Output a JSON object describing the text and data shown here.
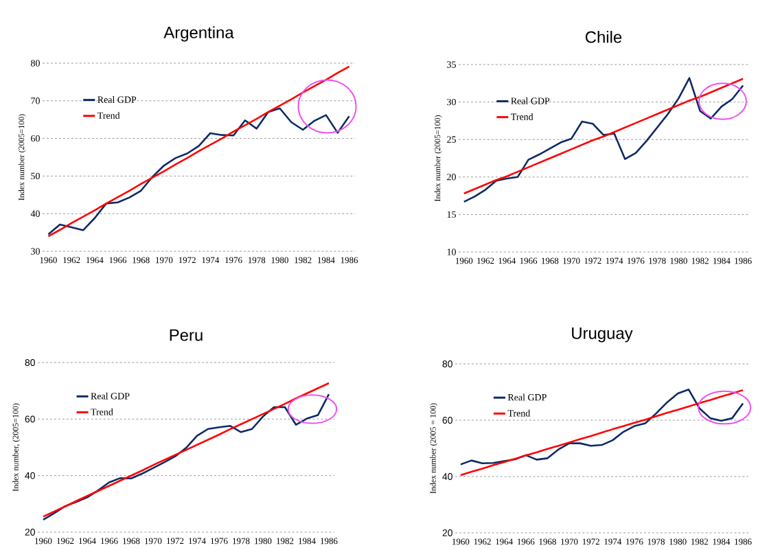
{
  "chart_data": [
    {
      "type": "line",
      "title": "Argentina",
      "ylabel": "Index number (2005=100)",
      "x": [
        1960,
        1961,
        1962,
        1963,
        1964,
        1965,
        1966,
        1967,
        1968,
        1969,
        1970,
        1971,
        1972,
        1973,
        1974,
        1975,
        1976,
        1977,
        1978,
        1979,
        1980,
        1981,
        1982,
        1983,
        1984,
        1985,
        1986
      ],
      "series": [
        {
          "name": "Real GDP",
          "color": "#0d2a63",
          "values": [
            34.5,
            37.1,
            36.4,
            35.6,
            38.8,
            42.7,
            43.0,
            44.3,
            46.1,
            49.8,
            52.8,
            54.8,
            56.0,
            58.0,
            61.4,
            60.9,
            60.8,
            64.8,
            62.6,
            67.0,
            68.0,
            64.3,
            62.3,
            64.7,
            66.2,
            61.5,
            65.9
          ]
        },
        {
          "name": "Trend",
          "color": "#ff0000",
          "type": "line",
          "values": [
            34.0,
            35.7,
            37.5,
            39.2,
            40.9,
            42.7,
            44.4,
            46.1,
            47.9,
            49.6,
            51.3,
            53.1,
            54.8,
            56.6,
            58.3,
            60.0,
            61.8,
            63.5,
            65.2,
            67.0,
            68.7,
            70.4,
            72.2,
            73.9,
            75.6,
            77.4,
            79.1
          ]
        }
      ],
      "xlim": [
        1959.5,
        1986.5
      ],
      "xticks": [
        1960,
        1962,
        1964,
        1966,
        1968,
        1970,
        1972,
        1974,
        1976,
        1978,
        1980,
        1982,
        1984,
        1986
      ],
      "ylim": [
        30,
        80
      ],
      "yticks": [
        30,
        40,
        50,
        60,
        70,
        80
      ],
      "grid": "y",
      "legend": "top left"
    },
    {
      "type": "line",
      "title": "Chile",
      "ylabel": "Index number (2005=100)",
      "x": [
        1960,
        1961,
        1962,
        1963,
        1964,
        1965,
        1966,
        1967,
        1968,
        1969,
        1970,
        1971,
        1972,
        1973,
        1974,
        1975,
        1976,
        1977,
        1978,
        1979,
        1980,
        1981,
        1982,
        1983,
        1984,
        1985,
        1986
      ],
      "series": [
        {
          "name": "Real GDP",
          "color": "#0d2a63",
          "values": [
            16.7,
            17.4,
            18.3,
            19.5,
            19.8,
            20.0,
            22.3,
            23.0,
            23.8,
            24.6,
            25.1,
            27.4,
            27.1,
            25.6,
            25.8,
            22.4,
            23.2,
            24.8,
            26.6,
            28.4,
            30.5,
            33.2,
            28.8,
            27.8,
            29.4,
            30.4,
            32.2
          ]
        },
        {
          "name": "Trend",
          "color": "#ff0000",
          "type": "line",
          "values": [
            17.8,
            18.4,
            19.0,
            19.6,
            20.1,
            20.7,
            21.3,
            21.9,
            22.5,
            23.1,
            23.7,
            24.3,
            24.9,
            25.4,
            26.0,
            26.6,
            27.2,
            27.8,
            28.4,
            29.0,
            29.6,
            30.2,
            30.7,
            31.3,
            31.9,
            32.5,
            33.1
          ]
        }
      ],
      "xlim": [
        1959.5,
        1986.5
      ],
      "xticks": [
        1960,
        1962,
        1964,
        1966,
        1968,
        1970,
        1972,
        1974,
        1976,
        1978,
        1980,
        1982,
        1984,
        1986
      ],
      "ylim": [
        10,
        35
      ],
      "yticks": [
        10,
        15,
        20,
        25,
        30,
        35
      ],
      "grid": "y",
      "legend": "top left"
    },
    {
      "type": "line",
      "title": "Peru",
      "ylabel": "Index number, (2005=100)",
      "x": [
        1960,
        1961,
        1962,
        1963,
        1964,
        1965,
        1966,
        1967,
        1968,
        1969,
        1970,
        1971,
        1972,
        1973,
        1974,
        1975,
        1976,
        1977,
        1978,
        1979,
        1980,
        1981,
        1982,
        1983,
        1984,
        1985,
        1986
      ],
      "series": [
        {
          "name": "Real GDP",
          "color": "#0d2a63",
          "values": [
            24.4,
            26.7,
            29.2,
            30.7,
            32.3,
            34.8,
            37.6,
            39.1,
            39.0,
            40.7,
            42.7,
            44.7,
            46.8,
            49.8,
            54.1,
            56.5,
            57.1,
            57.6,
            55.4,
            56.5,
            60.9,
            64.2,
            64.2,
            58.0,
            60.2,
            61.4,
            68.8
          ]
        },
        {
          "name": "Trend",
          "color": "#ff0000",
          "type": "line",
          "values": [
            25.5,
            27.3,
            29.1,
            31.0,
            32.8,
            34.6,
            36.4,
            38.2,
            40.0,
            41.8,
            43.7,
            45.5,
            47.3,
            49.1,
            50.9,
            52.7,
            54.5,
            56.4,
            58.2,
            60.0,
            61.8,
            63.6,
            65.4,
            67.3,
            69.1,
            70.9,
            72.7
          ]
        }
      ],
      "xlim": [
        1959.5,
        1986.5
      ],
      "xticks": [
        1960,
        1962,
        1964,
        1966,
        1968,
        1970,
        1972,
        1974,
        1976,
        1978,
        1980,
        1982,
        1984,
        1986
      ],
      "ylim": [
        20,
        80
      ],
      "yticks": [
        20,
        40,
        60,
        80
      ],
      "grid": "y",
      "legend": "top left"
    },
    {
      "type": "line",
      "title": "Uruguay",
      "ylabel": "Index number (2005 = 100)",
      "x": [
        1960,
        1961,
        1962,
        1963,
        1964,
        1965,
        1966,
        1967,
        1968,
        1969,
        1970,
        1971,
        1972,
        1973,
        1974,
        1975,
        1976,
        1977,
        1978,
        1979,
        1980,
        1981,
        1982,
        1983,
        1984,
        1985,
        1986
      ],
      "series": [
        {
          "name": "Real GDP",
          "color": "#0d2a63",
          "values": [
            44.3,
            45.7,
            44.7,
            44.8,
            45.5,
            46.1,
            47.6,
            46.0,
            46.5,
            49.6,
            51.8,
            51.8,
            50.9,
            51.2,
            52.9,
            55.9,
            57.9,
            58.9,
            62.4,
            66.3,
            69.5,
            70.9,
            64.2,
            60.7,
            59.8,
            60.7,
            66.0
          ]
        },
        {
          "name": "Trend",
          "color": "#ff0000",
          "type": "line",
          "values": [
            40.5,
            41.7,
            42.8,
            44.0,
            45.1,
            46.3,
            47.5,
            48.6,
            49.8,
            50.9,
            52.1,
            53.3,
            54.4,
            55.6,
            56.8,
            57.9,
            59.1,
            60.2,
            61.4,
            62.6,
            63.7,
            64.9,
            66.1,
            67.2,
            68.4,
            69.5,
            70.7
          ]
        }
      ],
      "xlim": [
        1959.5,
        1986.5
      ],
      "xticks": [
        1960,
        1962,
        1964,
        1966,
        1968,
        1970,
        1972,
        1974,
        1976,
        1978,
        1980,
        1982,
        1984,
        1986
      ],
      "ylim": [
        20,
        80
      ],
      "yticks": [
        20,
        40,
        60,
        80
      ],
      "grid": "y",
      "legend": "top left"
    }
  ]
}
